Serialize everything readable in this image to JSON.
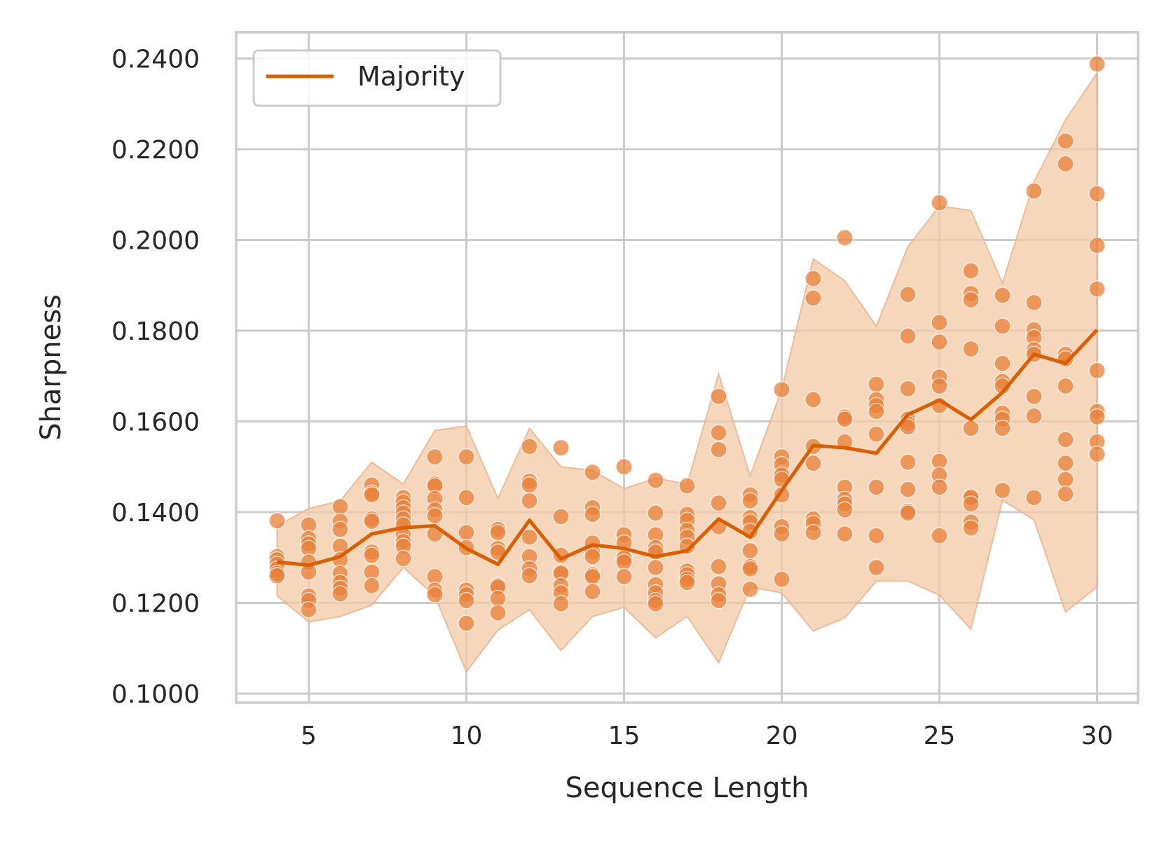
{
  "chart_data": {
    "type": "line",
    "title": "",
    "xlabel": "Sequence Length",
    "ylabel": "Sharpness",
    "xlim": [
      2.7,
      31.3
    ],
    "ylim": [
      0.098,
      0.2458
    ],
    "xticks": [
      5,
      10,
      15,
      20,
      25,
      30
    ],
    "xtick_labels": [
      "5",
      "10",
      "15",
      "20",
      "25",
      "30"
    ],
    "yticks": [
      0.1,
      0.12,
      0.14,
      0.16,
      0.18,
      0.2,
      0.22,
      0.24
    ],
    "ytick_labels": [
      "0.1000",
      "0.1200",
      "0.1400",
      "0.1600",
      "0.1800",
      "0.2000",
      "0.2200",
      "0.2400"
    ],
    "grid": true,
    "legend": {
      "position": "top-left",
      "entries": [
        "Majority"
      ]
    },
    "colors": {
      "line": "#d95f02",
      "points": "#e8803a",
      "band": "#f3c9a6",
      "grid": "#cccccc"
    },
    "series": [
      {
        "name": "Majority",
        "x": [
          4,
          5,
          6,
          7,
          8,
          9,
          10,
          11,
          12,
          13,
          14,
          15,
          16,
          17,
          18,
          19,
          20,
          21,
          22,
          23,
          24,
          25,
          26,
          27,
          28,
          29,
          30
        ],
        "y": [
          0.129,
          0.1283,
          0.1302,
          0.1352,
          0.1366,
          0.137,
          0.132,
          0.1285,
          0.1382,
          0.1297,
          0.1328,
          0.132,
          0.1302,
          0.1315,
          0.1385,
          0.1345,
          0.1448,
          0.1547,
          0.1542,
          0.153,
          0.1615,
          0.1647,
          0.1604,
          0.1664,
          0.1748,
          0.1728,
          0.1802
        ],
        "band_upper": [
          0.137,
          0.1408,
          0.1425,
          0.151,
          0.1462,
          0.158,
          0.159,
          0.143,
          0.1585,
          0.15,
          0.1492,
          0.1452,
          0.1475,
          0.1462,
          0.1705,
          0.148,
          0.167,
          0.1958,
          0.191,
          0.181,
          0.1985,
          0.2075,
          0.2065,
          0.1905,
          0.2128,
          0.2265,
          0.2368
        ],
        "band_lower": [
          0.1215,
          0.1158,
          0.117,
          0.1195,
          0.1278,
          0.1215,
          0.1048,
          0.114,
          0.1185,
          0.1095,
          0.117,
          0.119,
          0.1123,
          0.117,
          0.1068,
          0.1235,
          0.1222,
          0.1138,
          0.1167,
          0.1248,
          0.1248,
          0.1217,
          0.1142,
          0.1426,
          0.1383,
          0.118,
          0.1235
        ]
      }
    ],
    "scatter_points": [
      [
        4,
        0.1381
      ],
      [
        4,
        0.1302
      ],
      [
        4,
        0.1295
      ],
      [
        4,
        0.1285
      ],
      [
        4,
        0.1275
      ],
      [
        4,
        0.1265
      ],
      [
        4,
        0.126
      ],
      [
        5,
        0.1372
      ],
      [
        5,
        0.1342
      ],
      [
        5,
        0.133
      ],
      [
        5,
        0.132
      ],
      [
        5,
        0.129
      ],
      [
        5,
        0.1268
      ],
      [
        5,
        0.1215
      ],
      [
        5,
        0.1205
      ],
      [
        5,
        0.1185
      ],
      [
        6,
        0.1412
      ],
      [
        6,
        0.138
      ],
      [
        6,
        0.1362
      ],
      [
        6,
        0.1325
      ],
      [
        6,
        0.1295
      ],
      [
        6,
        0.1265
      ],
      [
        6,
        0.1245
      ],
      [
        6,
        0.1232
      ],
      [
        6,
        0.122
      ],
      [
        7,
        0.146
      ],
      [
        7,
        0.1442
      ],
      [
        7,
        0.1438
      ],
      [
        7,
        0.1385
      ],
      [
        7,
        0.138
      ],
      [
        7,
        0.1312
      ],
      [
        7,
        0.1305
      ],
      [
        7,
        0.1268
      ],
      [
        7,
        0.1238
      ],
      [
        8,
        0.1432
      ],
      [
        8,
        0.1422
      ],
      [
        8,
        0.141
      ],
      [
        8,
        0.1398
      ],
      [
        8,
        0.1385
      ],
      [
        8,
        0.1372
      ],
      [
        8,
        0.135
      ],
      [
        8,
        0.1335
      ],
      [
        8,
        0.1325
      ],
      [
        8,
        0.1298
      ],
      [
        9,
        0.1522
      ],
      [
        9,
        0.1462
      ],
      [
        9,
        0.1458
      ],
      [
        9,
        0.143
      ],
      [
        9,
        0.1405
      ],
      [
        9,
        0.1392
      ],
      [
        9,
        0.1352
      ],
      [
        9,
        0.1258
      ],
      [
        9,
        0.1228
      ],
      [
        9,
        0.1218
      ],
      [
        10,
        0.1522
      ],
      [
        10,
        0.1432
      ],
      [
        10,
        0.1355
      ],
      [
        10,
        0.1322
      ],
      [
        10,
        0.1228
      ],
      [
        10,
        0.1218
      ],
      [
        10,
        0.1205
      ],
      [
        10,
        0.1155
      ],
      [
        11,
        0.1362
      ],
      [
        11,
        0.1355
      ],
      [
        11,
        0.132
      ],
      [
        11,
        0.1312
      ],
      [
        11,
        0.1238
      ],
      [
        11,
        0.1235
      ],
      [
        11,
        0.121
      ],
      [
        11,
        0.1178
      ],
      [
        12,
        0.1545
      ],
      [
        12,
        0.1468
      ],
      [
        12,
        0.146
      ],
      [
        12,
        0.1425
      ],
      [
        12,
        0.1345
      ],
      [
        12,
        0.1302
      ],
      [
        12,
        0.1275
      ],
      [
        12,
        0.126
      ],
      [
        13,
        0.1542
      ],
      [
        13,
        0.139
      ],
      [
        13,
        0.1305
      ],
      [
        13,
        0.1268
      ],
      [
        13,
        0.1265
      ],
      [
        13,
        0.1238
      ],
      [
        13,
        0.1222
      ],
      [
        13,
        0.1198
      ],
      [
        14,
        0.1488
      ],
      [
        14,
        0.141
      ],
      [
        14,
        0.1395
      ],
      [
        14,
        0.1332
      ],
      [
        14,
        0.1312
      ],
      [
        14,
        0.1302
      ],
      [
        14,
        0.1262
      ],
      [
        14,
        0.1258
      ],
      [
        14,
        0.1225
      ],
      [
        15,
        0.15
      ],
      [
        15,
        0.135
      ],
      [
        15,
        0.1332
      ],
      [
        15,
        0.1302
      ],
      [
        15,
        0.1298
      ],
      [
        15,
        0.129
      ],
      [
        15,
        0.1258
      ],
      [
        16,
        0.147
      ],
      [
        16,
        0.1398
      ],
      [
        16,
        0.135
      ],
      [
        16,
        0.1322
      ],
      [
        16,
        0.1312
      ],
      [
        16,
        0.1278
      ],
      [
        16,
        0.124
      ],
      [
        16,
        0.1222
      ],
      [
        16,
        0.1205
      ],
      [
        16,
        0.1198
      ],
      [
        17,
        0.1458
      ],
      [
        17,
        0.1395
      ],
      [
        17,
        0.1382
      ],
      [
        17,
        0.136
      ],
      [
        17,
        0.1345
      ],
      [
        17,
        0.1325
      ],
      [
        17,
        0.127
      ],
      [
        17,
        0.1262
      ],
      [
        17,
        0.1252
      ],
      [
        17,
        0.1245
      ],
      [
        18,
        0.1655
      ],
      [
        18,
        0.1575
      ],
      [
        18,
        0.1538
      ],
      [
        18,
        0.142
      ],
      [
        18,
        0.1368
      ],
      [
        18,
        0.128
      ],
      [
        18,
        0.1242
      ],
      [
        18,
        0.1218
      ],
      [
        18,
        0.1205
      ],
      [
        19,
        0.1438
      ],
      [
        19,
        0.1425
      ],
      [
        19,
        0.1388
      ],
      [
        19,
        0.1378
      ],
      [
        19,
        0.1358
      ],
      [
        19,
        0.1315
      ],
      [
        19,
        0.128
      ],
      [
        19,
        0.1275
      ],
      [
        19,
        0.123
      ],
      [
        20,
        0.167
      ],
      [
        20,
        0.1522
      ],
      [
        20,
        0.1505
      ],
      [
        20,
        0.1482
      ],
      [
        20,
        0.1472
      ],
      [
        20,
        0.1438
      ],
      [
        20,
        0.1368
      ],
      [
        20,
        0.1352
      ],
      [
        20,
        0.1252
      ],
      [
        21,
        0.1915
      ],
      [
        21,
        0.1872
      ],
      [
        21,
        0.1648
      ],
      [
        21,
        0.1545
      ],
      [
        21,
        0.1508
      ],
      [
        21,
        0.1385
      ],
      [
        21,
        0.1375
      ],
      [
        21,
        0.1355
      ],
      [
        22,
        0.2005
      ],
      [
        22,
        0.161
      ],
      [
        22,
        0.1605
      ],
      [
        22,
        0.1555
      ],
      [
        22,
        0.1455
      ],
      [
        22,
        0.1428
      ],
      [
        22,
        0.1418
      ],
      [
        22,
        0.1405
      ],
      [
        22,
        0.1352
      ],
      [
        23,
        0.1682
      ],
      [
        23,
        0.1648
      ],
      [
        23,
        0.1635
      ],
      [
        23,
        0.1622
      ],
      [
        23,
        0.1572
      ],
      [
        23,
        0.1455
      ],
      [
        23,
        0.1348
      ],
      [
        23,
        0.1278
      ],
      [
        24,
        0.188
      ],
      [
        24,
        0.1788
      ],
      [
        24,
        0.1672
      ],
      [
        24,
        0.1605
      ],
      [
        24,
        0.1595
      ],
      [
        24,
        0.1588
      ],
      [
        24,
        0.151
      ],
      [
        24,
        0.145
      ],
      [
        24,
        0.1402
      ],
      [
        24,
        0.1398
      ],
      [
        25,
        0.2082
      ],
      [
        25,
        0.1818
      ],
      [
        25,
        0.1775
      ],
      [
        25,
        0.1698
      ],
      [
        25,
        0.1678
      ],
      [
        25,
        0.1635
      ],
      [
        25,
        0.1512
      ],
      [
        25,
        0.1482
      ],
      [
        25,
        0.1455
      ],
      [
        25,
        0.1348
      ],
      [
        26,
        0.1932
      ],
      [
        26,
        0.1882
      ],
      [
        26,
        0.1868
      ],
      [
        26,
        0.176
      ],
      [
        26,
        0.1585
      ],
      [
        26,
        0.1435
      ],
      [
        26,
        0.1432
      ],
      [
        26,
        0.1418
      ],
      [
        26,
        0.1378
      ],
      [
        26,
        0.1365
      ],
      [
        27,
        0.1878
      ],
      [
        27,
        0.181
      ],
      [
        27,
        0.1728
      ],
      [
        27,
        0.1688
      ],
      [
        27,
        0.1678
      ],
      [
        27,
        0.1618
      ],
      [
        27,
        0.1605
      ],
      [
        27,
        0.1585
      ],
      [
        27,
        0.1448
      ],
      [
        28,
        0.2108
      ],
      [
        28,
        0.1862
      ],
      [
        28,
        0.1802
      ],
      [
        28,
        0.1785
      ],
      [
        28,
        0.1758
      ],
      [
        28,
        0.1748
      ],
      [
        28,
        0.1655
      ],
      [
        28,
        0.1612
      ],
      [
        28,
        0.1432
      ],
      [
        29,
        0.2218
      ],
      [
        29,
        0.2168
      ],
      [
        29,
        0.1748
      ],
      [
        29,
        0.1738
      ],
      [
        29,
        0.1678
      ],
      [
        29,
        0.156
      ],
      [
        29,
        0.1508
      ],
      [
        29,
        0.1472
      ],
      [
        29,
        0.144
      ],
      [
        30,
        0.2388
      ],
      [
        30,
        0.2102
      ],
      [
        30,
        0.1988
      ],
      [
        30,
        0.1892
      ],
      [
        30,
        0.1712
      ],
      [
        30,
        0.1622
      ],
      [
        30,
        0.161
      ],
      [
        30,
        0.1555
      ],
      [
        30,
        0.1528
      ]
    ]
  }
}
